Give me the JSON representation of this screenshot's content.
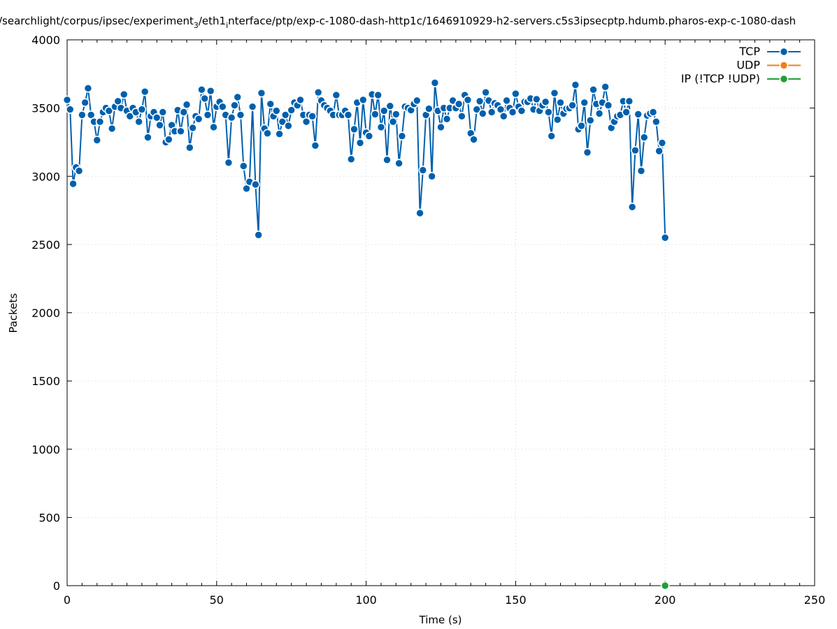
{
  "chart_data": {
    "type": "line",
    "title": "/searchlight/corpus/ipsec/experiment",
    "title_sub": "3",
    "title_mid": "/eth1",
    "title_sub2": "i",
    "title_end": "nterface/ptp/exp-c-1080-dash-http1c/1646910929-h2-servers.c5s3ipsecptp.hdumb.pharos-exp-c-1080-dash",
    "xlabel": "Time (s)",
    "ylabel": "Packets",
    "xlim": [
      0,
      250
    ],
    "ylim": [
      0,
      4000
    ],
    "xticks": [
      "0",
      "50",
      "100",
      "150",
      "200",
      "250"
    ],
    "yticks": [
      "0",
      "500",
      "1000",
      "1500",
      "2000",
      "2500",
      "3000",
      "3500",
      "4000"
    ],
    "grid": true,
    "legend_position": "top-right",
    "series": [
      {
        "name": "TCP",
        "color": "#0060ad",
        "x": [
          0,
          1,
          2,
          3,
          4,
          5,
          6,
          7,
          8,
          9,
          10,
          11,
          12,
          13,
          14,
          15,
          16,
          17,
          18,
          19,
          20,
          21,
          22,
          23,
          24,
          25,
          26,
          27,
          28,
          29,
          30,
          31,
          32,
          33,
          34,
          35,
          36,
          37,
          38,
          39,
          40,
          41,
          42,
          43,
          44,
          45,
          46,
          47,
          48,
          49,
          50,
          51,
          52,
          53,
          54,
          55,
          56,
          57,
          58,
          59,
          60,
          61,
          62,
          63,
          64,
          65,
          66,
          67,
          68,
          69,
          70,
          71,
          72,
          73,
          74,
          75,
          76,
          77,
          78,
          79,
          80,
          81,
          82,
          83,
          84,
          85,
          86,
          87,
          88,
          89,
          90,
          91,
          92,
          93,
          94,
          95,
          96,
          97,
          98,
          99,
          100,
          101,
          102,
          103,
          104,
          105,
          106,
          107,
          108,
          109,
          110,
          111,
          112,
          113,
          114,
          115,
          116,
          117,
          118,
          119,
          120,
          121,
          122,
          123,
          124,
          125,
          126,
          127,
          128,
          129,
          130,
          131,
          132,
          133,
          134,
          135,
          136,
          137,
          138,
          139,
          140,
          141,
          142,
          143,
          144,
          145,
          146,
          147,
          148,
          149,
          150,
          151,
          152,
          153,
          154,
          155,
          156,
          157,
          158,
          159,
          160,
          161,
          162,
          163,
          164,
          165,
          166,
          167,
          168,
          169,
          170,
          171,
          172,
          173,
          174,
          175,
          176,
          177,
          178,
          179,
          180,
          181,
          182,
          183,
          184,
          185,
          186,
          187,
          188,
          189,
          190,
          191,
          192,
          193,
          194,
          195,
          196,
          197,
          198,
          199,
          200
        ],
        "values": [
          3560,
          3490,
          2945,
          3065,
          3040,
          3450,
          3540,
          3645,
          3450,
          3400,
          3265,
          3400,
          3470,
          3500,
          3480,
          3350,
          3510,
          3550,
          3500,
          3600,
          3480,
          3440,
          3500,
          3470,
          3400,
          3490,
          3620,
          3285,
          3440,
          3470,
          3430,
          3375,
          3470,
          3250,
          3270,
          3375,
          3330,
          3485,
          3330,
          3470,
          3525,
          3210,
          3355,
          3440,
          3420,
          3635,
          3570,
          3450,
          3625,
          3360,
          3510,
          3545,
          3510,
          3450,
          3100,
          3430,
          3520,
          3580,
          3450,
          3075,
          2910,
          2960,
          3510,
          2940,
          2570,
          3610,
          3350,
          3315,
          3530,
          3440,
          3480,
          3310,
          3400,
          3450,
          3370,
          3485,
          3540,
          3520,
          3560,
          3450,
          3400,
          3450,
          3440,
          3225,
          3615,
          3555,
          3520,
          3500,
          3480,
          3450,
          3595,
          3450,
          3450,
          3480,
          3450,
          3125,
          3345,
          3540,
          3245,
          3560,
          3320,
          3295,
          3600,
          3455,
          3595,
          3360,
          3480,
          3120,
          3515,
          3400,
          3455,
          3095,
          3295,
          3510,
          3500,
          3485,
          3530,
          3555,
          2730,
          3045,
          3450,
          3495,
          3000,
          3685,
          3480,
          3360,
          3500,
          3420,
          3500,
          3555,
          3500,
          3530,
          3440,
          3595,
          3560,
          3315,
          3270,
          3490,
          3550,
          3460,
          3615,
          3555,
          3470,
          3535,
          3520,
          3490,
          3440,
          3555,
          3500,
          3470,
          3605,
          3510,
          3480,
          3545,
          3545,
          3570,
          3490,
          3565,
          3480,
          3520,
          3545,
          3470,
          3295,
          3610,
          3415,
          3540,
          3460,
          3495,
          3500,
          3520,
          3670,
          3345,
          3370,
          3540,
          3175,
          3410,
          3635,
          3530,
          3460,
          3540,
          3655,
          3520,
          3355,
          3400,
          3440,
          3450,
          3550,
          3470,
          3550,
          2775,
          3190,
          3455,
          3040,
          3285,
          3445,
          3460,
          3470,
          3400,
          3185,
          3245,
          2550
        ]
      },
      {
        "name": "UDP",
        "color": "#f07f18",
        "x": [],
        "values": []
      },
      {
        "name": "IP (!TCP  !UDP)",
        "color": "#1f9e37",
        "x": [
          200
        ],
        "values": [
          0
        ]
      }
    ]
  }
}
